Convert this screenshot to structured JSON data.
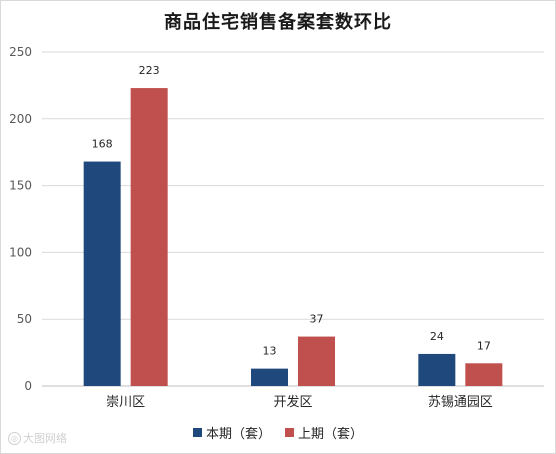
{
  "chart_data": {
    "type": "bar",
    "title": "商品住宅销售备案套数环比",
    "categories": [
      "崇川区",
      "开发区",
      "苏锡通园区"
    ],
    "series": [
      {
        "name": "本期（套）",
        "values": [
          168,
          13,
          24
        ],
        "color": "#1f497d"
      },
      {
        "name": "上期（套）",
        "values": [
          223,
          37,
          17
        ],
        "color": "#c0504d"
      }
    ],
    "ylim": [
      0,
      250
    ],
    "yticks": [
      0,
      50,
      100,
      150,
      200,
      250
    ],
    "grid": true,
    "legend": "bottom"
  },
  "watermark": {
    "text": "大图网络",
    "icon": "watermark-logo-icon"
  }
}
